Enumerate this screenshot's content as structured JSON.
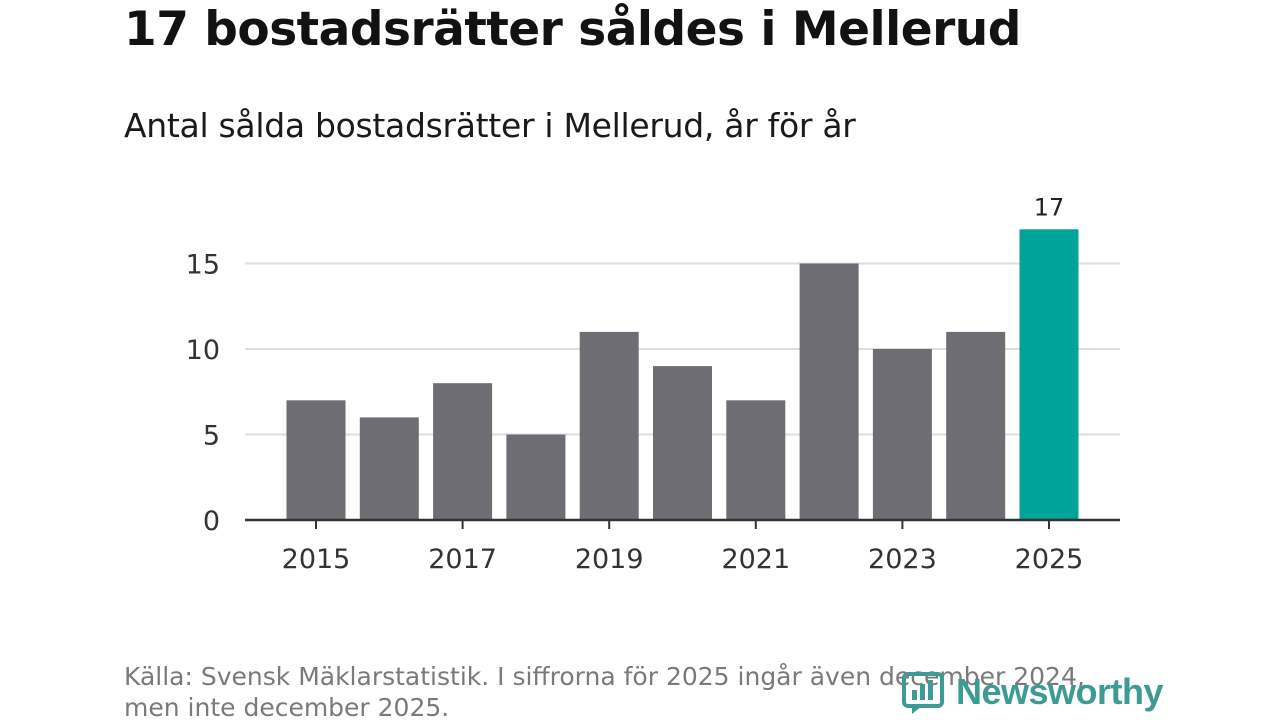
{
  "header": {
    "title": "17 bostadsrätter såldes i Mellerud",
    "subtitle": "Antal sålda bostadsrätter i Mellerud, år för år"
  },
  "footer": {
    "source_line1": "Källa: Svensk Mäklarstatistik. I siffrorna för 2025 ingår även december 2024,",
    "source_line2": "men inte december 2025.",
    "brand": "Newsworthy"
  },
  "colors": {
    "bar": "#6e6d73",
    "highlight": "#00a398",
    "brand": "#3d9b94"
  },
  "icons": [
    "newsworthy-logo-icon"
  ],
  "chart_data": {
    "type": "bar",
    "title": "Antal sålda bostadsrätter i Mellerud, år för år",
    "xlabel": "",
    "ylabel": "",
    "categories": [
      "2015",
      "2016",
      "2017",
      "2018",
      "2019",
      "2020",
      "2021",
      "2022",
      "2023",
      "2024",
      "2025"
    ],
    "values": [
      7,
      6,
      8,
      5,
      11,
      9,
      7,
      15,
      10,
      11,
      17
    ],
    "highlight_index": 10,
    "data_labels": [
      {
        "index": 10,
        "text": "17"
      }
    ],
    "x_tick_labels": [
      "2015",
      "2017",
      "2019",
      "2021",
      "2023",
      "2025"
    ],
    "y_ticks": [
      0,
      5,
      10,
      15
    ],
    "ylim": [
      0,
      17
    ],
    "grid": true
  }
}
